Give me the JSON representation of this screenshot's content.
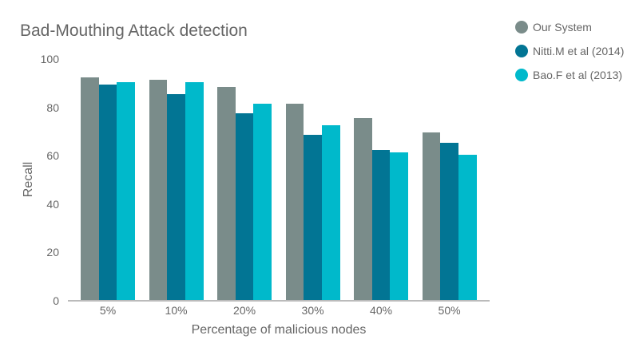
{
  "chart_data": {
    "type": "bar",
    "title": "Bad-Mouthing Attack detection",
    "xlabel": "Percentage of malicious nodes",
    "ylabel": "Recall",
    "ylim": [
      0,
      100
    ],
    "yticks": [
      "0",
      "20",
      "40",
      "60",
      "80",
      "100"
    ],
    "grid": false,
    "legend_position": "top-right",
    "categories": [
      "5%",
      "10%",
      "20%",
      "30%",
      "40%",
      "50%"
    ],
    "series": [
      {
        "name": "Our System",
        "color": "#7a8c8a",
        "values": [
          92.5,
          91.5,
          88.5,
          81.5,
          75.5,
          69.5
        ]
      },
      {
        "name": "Nitti.M et al (2014)",
        "color": "#027594",
        "values": [
          89.5,
          85.5,
          77.5,
          68.5,
          62.5,
          65.5
        ]
      },
      {
        "name": "Bao.F et al (2013)",
        "color": "#00b9cb",
        "values": [
          90.5,
          90.5,
          81.5,
          72.5,
          61.5,
          60.5
        ]
      }
    ]
  }
}
